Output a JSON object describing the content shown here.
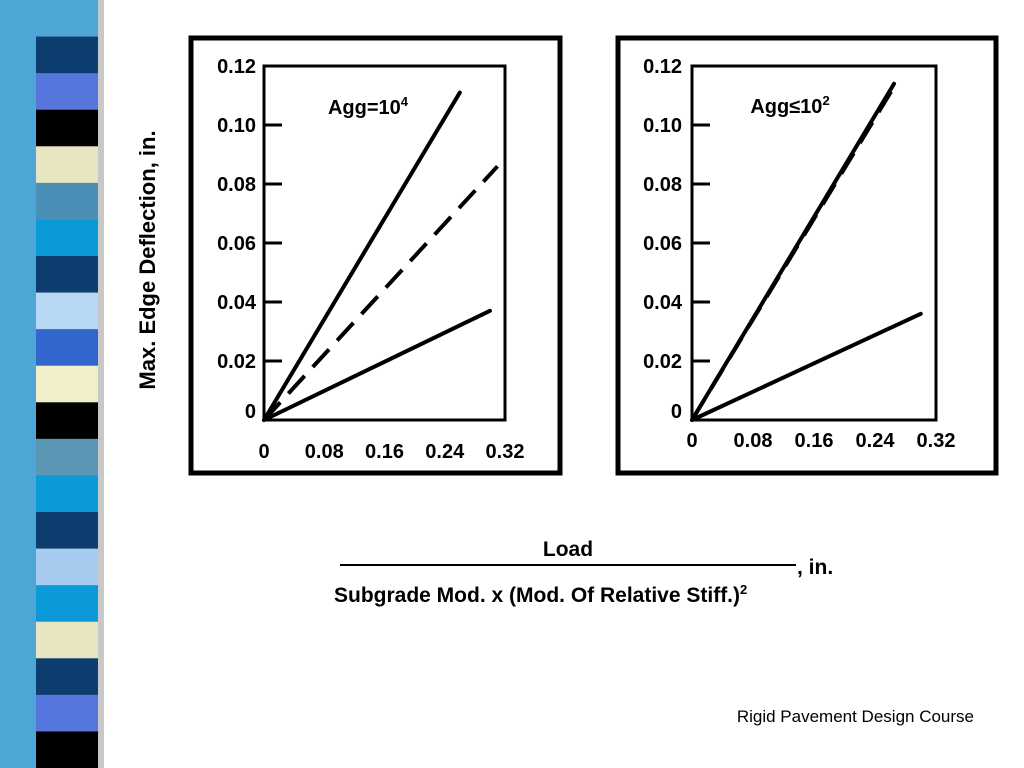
{
  "ylabel": "Max. Edge Deflection, in.",
  "xlabel": {
    "numerator": "Load",
    "unit": ", in.",
    "denominator": "Subgrade Mod. x (Mod. Of Relative Stiff.)",
    "denominator_exponent": "2"
  },
  "footer": "Rigid Pavement Design Course",
  "stripe_colors": [
    "#4da6d6",
    "#0d3d6e",
    "#5577dd",
    "#000000",
    "#e8e6c0",
    "#4a8fb5",
    "#0b9ad8",
    "#0d3d6e",
    "#b7d8f5",
    "#3366cc",
    "#f0efc8",
    "#000000",
    "#5b97b5",
    "#0b9ad8",
    "#0d3d6e",
    "#a7cbee",
    "#0b9ad8",
    "#e8e6c0",
    "#0d3d6e",
    "#5577dd",
    "#000000"
  ],
  "chart_data": [
    {
      "type": "line",
      "annotation": "Agg=10",
      "annotation_exponent": "4",
      "xticks": [
        "0",
        "0.08",
        "0.16",
        "0.24",
        "0.32"
      ],
      "yticks": [
        "0",
        "0.02",
        "0.04",
        "0.06",
        "0.08",
        "0.10",
        "0.12"
      ],
      "xlim": [
        0,
        0.32
      ],
      "ylim": [
        0,
        0.12
      ],
      "grid": false,
      "series": [
        {
          "style": "solid",
          "x": [
            0,
            0.26
          ],
          "y": [
            0,
            0.111
          ]
        },
        {
          "style": "dashed",
          "x": [
            0,
            0.31
          ],
          "y": [
            0,
            0.086
          ]
        },
        {
          "style": "solid",
          "x": [
            0,
            0.3
          ],
          "y": [
            0,
            0.037
          ]
        }
      ]
    },
    {
      "type": "line",
      "annotation": "Agg≤10",
      "annotation_exponent": "2",
      "xticks": [
        "0",
        "0.08",
        "0.16",
        "0.24",
        "0.32"
      ],
      "yticks": [
        "0",
        "0.02",
        "0.04",
        "0.06",
        "0.08",
        "0.10",
        "0.12"
      ],
      "xlim": [
        0,
        0.32
      ],
      "ylim": [
        0,
        0.12
      ],
      "grid": false,
      "series": [
        {
          "style": "solid",
          "x": [
            0,
            0.265
          ],
          "y": [
            0,
            0.114
          ]
        },
        {
          "style": "dashed",
          "x": [
            0,
            0.265
          ],
          "y": [
            0,
            0.113
          ]
        },
        {
          "style": "solid",
          "x": [
            0,
            0.3
          ],
          "y": [
            0,
            0.036
          ]
        }
      ]
    }
  ]
}
